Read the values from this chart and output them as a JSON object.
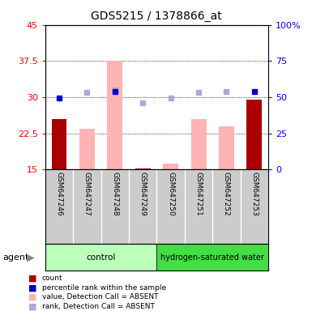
{
  "title": "GDS5215 / 1378866_at",
  "samples": [
    "GSM647246",
    "GSM647247",
    "GSM647248",
    "GSM647249",
    "GSM647250",
    "GSM647251",
    "GSM647252",
    "GSM647253"
  ],
  "count_values": [
    25.5,
    null,
    null,
    15.2,
    null,
    null,
    null,
    29.5
  ],
  "rank_values": [
    29.8,
    null,
    31.2,
    null,
    null,
    null,
    null,
    31.2
  ],
  "absent_value_bars": [
    null,
    23.5,
    37.5,
    null,
    16.2,
    25.5,
    24.0,
    null
  ],
  "absent_rank_dots": [
    null,
    31.0,
    31.5,
    28.8,
    29.8,
    31.0,
    31.2,
    null
  ],
  "ylim_left": [
    15,
    45
  ],
  "ylim_right": [
    0,
    100
  ],
  "left_ticks": [
    15,
    22.5,
    30,
    37.5,
    45
  ],
  "right_ticks": [
    0,
    25,
    50,
    75,
    100
  ],
  "bar_color_present": "#aa0000",
  "bar_color_absent": "#ffb3b3",
  "dot_color_present_rank": "#0000cc",
  "dot_color_absent_rank": "#aaaadd",
  "group_label": "agent",
  "control_label": "control",
  "treatment_label": "hydrogen-saturated water",
  "legend_items": [
    {
      "label": "count",
      "color": "#aa0000"
    },
    {
      "label": "percentile rank within the sample",
      "color": "#0000cc"
    },
    {
      "label": "value, Detection Call = ABSENT",
      "color": "#ffb3b3"
    },
    {
      "label": "rank, Detection Call = ABSENT",
      "color": "#aaaadd"
    }
  ]
}
